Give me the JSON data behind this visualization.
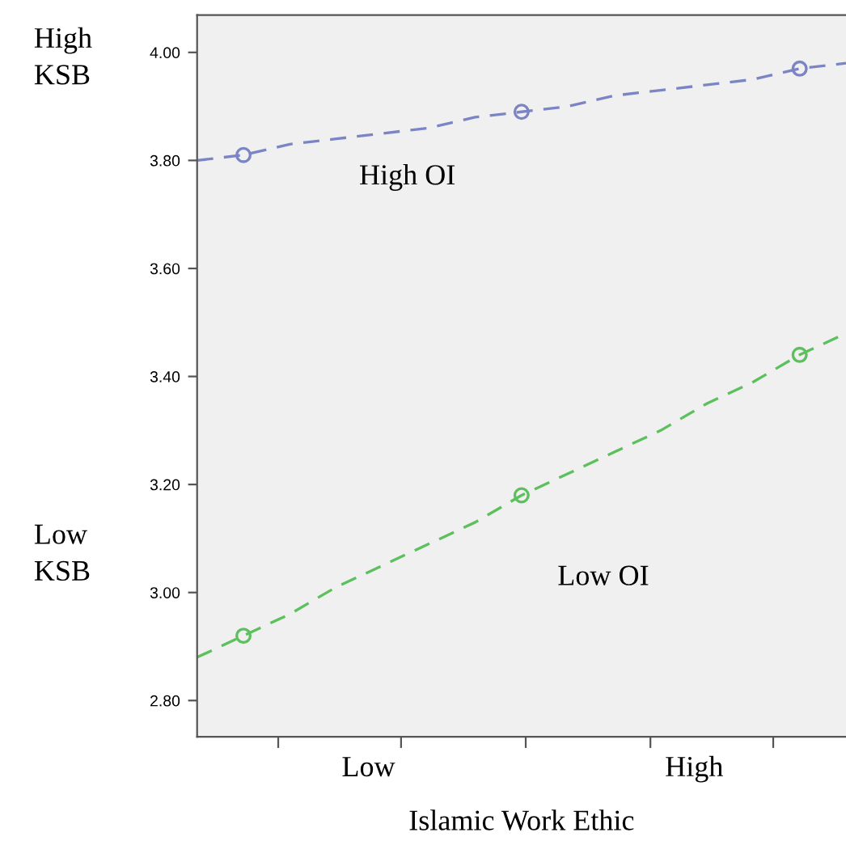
{
  "chart_data": {
    "type": "line",
    "xlabel": "Islamic Work Ethic",
    "annotations": [
      "High\nKSB",
      "Low\nKSB",
      "High OI",
      "Low OI",
      "Low",
      "High"
    ],
    "categories": [
      null,
      null,
      null,
      null,
      null,
      null,
      null,
      null,
      null,
      null,
      null,
      null,
      null,
      null,
      null
    ],
    "series": [
      {
        "type": "scatter",
        "color": "#7b84c4",
        "values": [
          null,
          3.81,
          null,
          null,
          null,
          null,
          null,
          3.89,
          null,
          null,
          null,
          null,
          null,
          3.97,
          null
        ]
      },
      {
        "type": "scatter",
        "color": "#5cc05c",
        "values": [
          null,
          2.92,
          null,
          null,
          null,
          null,
          null,
          3.18,
          null,
          null,
          null,
          null,
          null,
          3.44,
          null
        ]
      },
      {
        "marker": "none",
        "color": "#7b84c4",
        "values": [
          3.8,
          3.81,
          3.83,
          3.84,
          3.85,
          3.86,
          3.88,
          3.89,
          3.9,
          3.92,
          3.93,
          3.94,
          3.95,
          3.97,
          3.98
        ]
      },
      {
        "marker": "none",
        "color": "#5cc05c",
        "values": [
          2.88,
          2.92,
          2.96,
          3.01,
          3.05,
          3.09,
          3.13,
          3.18,
          3.22,
          3.26,
          3.3,
          3.35,
          3.39,
          3.44,
          3.48
        ]
      }
    ],
    "marker": "circle",
    "line_style": "dashed",
    "ylim": [
      2.733,
      4.069
    ],
    "yticks": [
      {
        "value": 2.8,
        "label": "2.80"
      },
      {
        "value": 3.0,
        "label": "3.00"
      },
      {
        "value": 3.2,
        "label": "3.20"
      },
      {
        "value": 3.4,
        "label": "3.40"
      },
      {
        "value": 3.6,
        "label": "3.60"
      },
      {
        "value": 3.8,
        "label": "3.80"
      },
      {
        "value": 4.0,
        "label": "4.00"
      }
    ],
    "grid": false,
    "legend": false
  }
}
